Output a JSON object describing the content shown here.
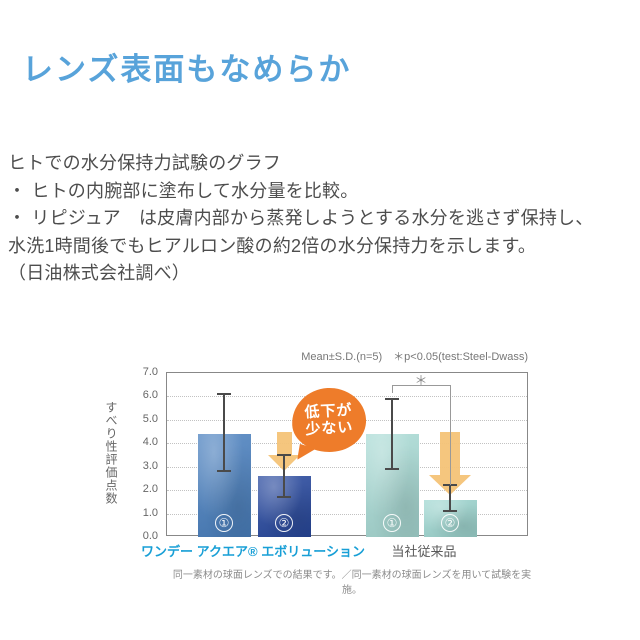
{
  "page": {
    "heading": "レンズ表面もなめらか",
    "heading_color": "#58a3da",
    "intro_lines": [
      "ヒトでの水分保持力試験のグラフ",
      "・ ヒトの内腕部に塗布して水分量を比較。",
      "・ リピジュア　は皮膚内部から蒸発しようとする水分を逃さず保持し、",
      "水洗1時間後でもヒアルロン酸の約2倍の水分保持力を示します。",
      "（日油株式会社調べ）"
    ],
    "caption": "同一素材の球面レンズでの結果です。／同一素材の球面レンズを用いて試験を実施。"
  },
  "chart_data": {
    "type": "bar",
    "annotation": "Mean±S.D.(n=5)　＊p<0.05(test:Steel-Dwass)",
    "ylabel": "すべり性評価点数",
    "ylim": [
      0.0,
      7.0
    ],
    "ytick_step": 1.0,
    "ytick_labels": [
      "0.0",
      "1.0",
      "2.0",
      "3.0",
      "4.0",
      "5.0",
      "6.0",
      "7.0"
    ],
    "grid": "horizontal-dotted",
    "legend_position": "none",
    "groups": [
      {
        "label": "ワンデー アクエア® エボリューション",
        "label_color": "#189fd6",
        "bars": [
          {
            "id": "①",
            "value": 4.4,
            "err_low": 2.8,
            "err_high": 6.1
          },
          {
            "id": "②",
            "value": 2.6,
            "err_low": 1.7,
            "err_high": 3.5
          }
        ]
      },
      {
        "label": "当社従来品",
        "label_color": "#595959",
        "bars": [
          {
            "id": "①",
            "value": 4.4,
            "err_low": 2.9,
            "err_high": 5.9
          },
          {
            "id": "②",
            "value": 1.6,
            "err_low": 1.1,
            "err_high": 2.2
          }
        ]
      }
    ],
    "bar_colors": [
      "#4a80bf",
      "#27489e",
      "#a9dbd5",
      "#9fd7d1"
    ],
    "error_bar_color": "#4a4a4a",
    "arrows": [
      {
        "group": 0,
        "bar": 1,
        "from_value": 4.5,
        "to_value": 2.8,
        "color": "#f4c377"
      },
      {
        "group": 1,
        "bar": 1,
        "from_value": 4.5,
        "to_value": 1.8,
        "color": "#f4c377"
      }
    ],
    "callout": {
      "lines": [
        "低下が",
        "少ない"
      ],
      "bg": "#ee7c2a",
      "text_color": "#ffffff"
    },
    "significance": {
      "symbol": "＊",
      "between": [
        [
          1,
          0
        ],
        [
          1,
          1
        ]
      ],
      "level_value": 6.5
    }
  }
}
